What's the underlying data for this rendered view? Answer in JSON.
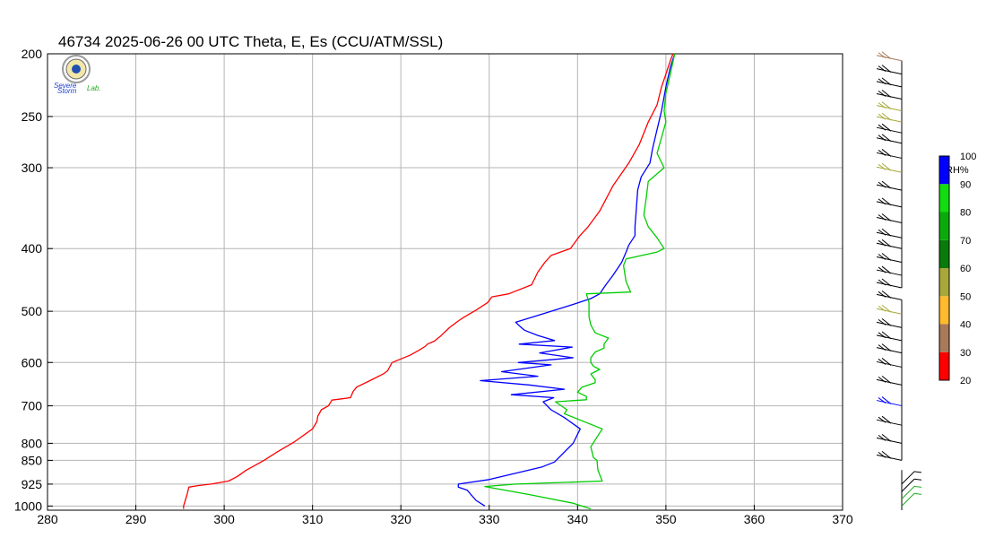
{
  "chart_data": {
    "type": "line",
    "title": "46734  2025-06-26 00 UTC  Theta, E, Es (CCU/ATM/SSL)",
    "x_axis": {
      "range": [
        280,
        370
      ],
      "ticks": [
        "280",
        "290",
        "300",
        "310",
        "320",
        "330",
        "340",
        "350",
        "360",
        "370"
      ]
    },
    "y_axis": {
      "scale": "log",
      "reversed": true,
      "range": [
        1015,
        200
      ],
      "ticks": [
        "200",
        "250",
        "300",
        "400",
        "500",
        "600",
        "700",
        "800",
        "850",
        "925",
        "1000"
      ]
    },
    "grid": true,
    "series": [
      {
        "color": "#ff0000",
        "points": [
          [
            295.4,
            1010
          ],
          [
            295.4,
            1000
          ],
          [
            295.6,
            980
          ],
          [
            295.8,
            960
          ],
          [
            296.0,
            935
          ],
          [
            297,
            930
          ],
          [
            298.5,
            925
          ],
          [
            300.5,
            915
          ],
          [
            301.5,
            900
          ],
          [
            302.5,
            880
          ],
          [
            303.5,
            865
          ],
          [
            304.5,
            850
          ],
          [
            306,
            825
          ],
          [
            308,
            795
          ],
          [
            310.0,
            760
          ],
          [
            310.5,
            740
          ],
          [
            310.6,
            726
          ],
          [
            311,
            710
          ],
          [
            311.8,
            700
          ],
          [
            312.2,
            686
          ],
          [
            314.3,
            680
          ],
          [
            314.6,
            665
          ],
          [
            315,
            655
          ],
          [
            316.5,
            640
          ],
          [
            318,
            625
          ],
          [
            318.5,
            618
          ],
          [
            319,
            600
          ],
          [
            321,
            585
          ],
          [
            322,
            575
          ],
          [
            322.8,
            566
          ],
          [
            323,
            562
          ],
          [
            323.8,
            556
          ],
          [
            324.5,
            546
          ],
          [
            325.5,
            530
          ],
          [
            326.3,
            520
          ],
          [
            327,
            512
          ],
          [
            328.5,
            498
          ],
          [
            329.8,
            485
          ],
          [
            330.3,
            475
          ],
          [
            332.2,
            470
          ],
          [
            334.8,
            455
          ],
          [
            335.5,
            435
          ],
          [
            336.3,
            420
          ],
          [
            337,
            410
          ],
          [
            339.2,
            400
          ],
          [
            340.2,
            383
          ],
          [
            341.2,
            370
          ],
          [
            342.5,
            350
          ],
          [
            344,
            320
          ],
          [
            345.8,
            295
          ],
          [
            347,
            276
          ],
          [
            348,
            255
          ],
          [
            349,
            240
          ],
          [
            349.5,
            225
          ],
          [
            350,
            215
          ],
          [
            350.5,
            205
          ],
          [
            350.8,
            200
          ]
        ]
      },
      {
        "color": "#0000ff",
        "points": [
          [
            329.5,
            1000
          ],
          [
            328.5,
            980
          ],
          [
            327.5,
            945
          ],
          [
            326.5,
            935
          ],
          [
            326.5,
            925
          ],
          [
            330,
            910
          ],
          [
            333,
            890
          ],
          [
            336,
            870
          ],
          [
            337.4,
            855
          ],
          [
            339.5,
            800
          ],
          [
            340.3,
            760
          ],
          [
            338.5,
            730
          ],
          [
            337,
            710
          ],
          [
            336.1,
            690
          ],
          [
            337.3,
            680
          ],
          [
            332.5,
            673
          ],
          [
            338.5,
            660
          ],
          [
            334.5,
            650
          ],
          [
            329,
            640
          ],
          [
            335.5,
            630
          ],
          [
            331.4,
            620
          ],
          [
            337,
            605
          ],
          [
            333.3,
            600
          ],
          [
            339.5,
            590
          ],
          [
            335.7,
            580
          ],
          [
            339.4,
            568
          ],
          [
            333.4,
            562
          ],
          [
            337.4,
            555
          ],
          [
            335.5,
            545
          ],
          [
            334,
            535
          ],
          [
            333.5,
            528
          ],
          [
            333,
            520
          ],
          [
            336,
            505
          ],
          [
            339.5,
            488
          ],
          [
            341.5,
            478
          ],
          [
            342.5,
            470
          ],
          [
            343.2,
            455
          ],
          [
            344,
            440
          ],
          [
            345,
            420
          ],
          [
            345.5,
            405
          ],
          [
            345.8,
            395
          ],
          [
            346.5,
            382
          ],
          [
            346.5,
            370
          ],
          [
            346.6,
            355
          ],
          [
            346.8,
            325
          ],
          [
            347.2,
            310
          ],
          [
            348.2,
            295
          ],
          [
            348.5,
            280
          ],
          [
            349,
            262
          ],
          [
            349.5,
            245
          ],
          [
            350,
            225
          ],
          [
            350.5,
            210
          ],
          [
            351,
            200
          ]
        ]
      },
      {
        "color": "#00cc00",
        "points": [
          [
            341.5,
            1010
          ],
          [
            339.5,
            990
          ],
          [
            334.5,
            960
          ],
          [
            329.5,
            933
          ],
          [
            333,
            925
          ],
          [
            342.8,
            915
          ],
          [
            342.3,
            880
          ],
          [
            342.2,
            850
          ],
          [
            341.8,
            842
          ],
          [
            341.5,
            810
          ],
          [
            342.8,
            760
          ],
          [
            338.5,
            720
          ],
          [
            338.8,
            710
          ],
          [
            337.5,
            690
          ],
          [
            341,
            685
          ],
          [
            341,
            677
          ],
          [
            340,
            667
          ],
          [
            340.5,
            655
          ],
          [
            342,
            645
          ],
          [
            342,
            638
          ],
          [
            341.5,
            625
          ],
          [
            342.5,
            615
          ],
          [
            341.8,
            608
          ],
          [
            341.5,
            600
          ],
          [
            341.5,
            590
          ],
          [
            342,
            578
          ],
          [
            343,
            570
          ],
          [
            343,
            562
          ],
          [
            343.5,
            550
          ],
          [
            342,
            540
          ],
          [
            341.5,
            525
          ],
          [
            341.3,
            510
          ],
          [
            341.3,
            485
          ],
          [
            341,
            470
          ],
          [
            346,
            467
          ],
          [
            345.5,
            450
          ],
          [
            345.2,
            425
          ],
          [
            345.5,
            415
          ],
          [
            349,
            405
          ],
          [
            349.8,
            400
          ],
          [
            349,
            385
          ],
          [
            348,
            370
          ],
          [
            347.5,
            355
          ],
          [
            347.8,
            332
          ],
          [
            348,
            315
          ],
          [
            349.8,
            300
          ],
          [
            349,
            285
          ],
          [
            350,
            255
          ],
          [
            349.8,
            245
          ],
          [
            350,
            230
          ],
          [
            350.5,
            215
          ],
          [
            351,
            200
          ]
        ]
      }
    ],
    "wind_barbs": {
      "levels": [
        205,
        215,
        225,
        235,
        245,
        255,
        265,
        275,
        290,
        305,
        325,
        345,
        365,
        385,
        400,
        420,
        440,
        460,
        480,
        505,
        530,
        555,
        580,
        610,
        650,
        700,
        750,
        800,
        850,
        925,
        950,
        975,
        1000
      ]
    },
    "colorbar": {
      "label": "RH%",
      "ticks": [
        "20",
        "30",
        "40",
        "50",
        "60",
        "70",
        "80",
        "90",
        "100"
      ],
      "colors": [
        "#000000",
        "#ff0000",
        "#a87a5a",
        "#ffba2e",
        "#a8a83a",
        "#0a7a0a",
        "#0aaa0a",
        "#11dd11",
        "#0000ff"
      ]
    }
  },
  "logo": {
    "line1": "Severe",
    "line2": "Storm",
    "line3": "Lab."
  }
}
